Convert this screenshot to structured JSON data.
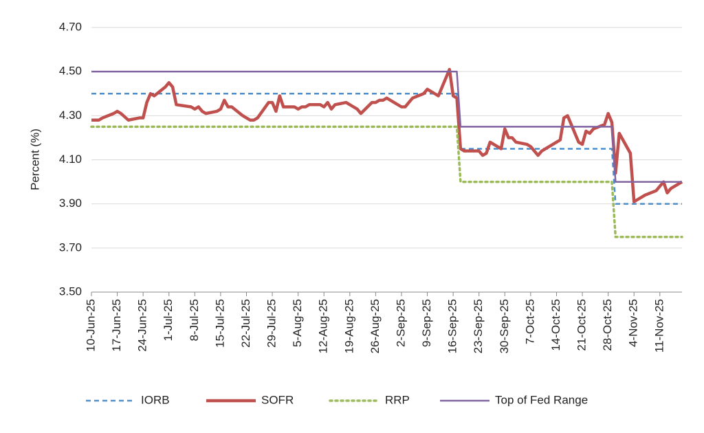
{
  "chart_data": {
    "type": "line",
    "y_label": "Percent (%)",
    "x": [
      "2025-06-10",
      "2025-06-11",
      "2025-06-12",
      "2025-06-13",
      "2025-06-16",
      "2025-06-17",
      "2025-06-18",
      "2025-06-20",
      "2025-06-23",
      "2025-06-24",
      "2025-06-25",
      "2025-06-26",
      "2025-06-27",
      "2025-06-30",
      "2025-07-01",
      "2025-07-02",
      "2025-07-03",
      "2025-07-07",
      "2025-07-08",
      "2025-07-09",
      "2025-07-10",
      "2025-07-11",
      "2025-07-14",
      "2025-07-15",
      "2025-07-16",
      "2025-07-17",
      "2025-07-18",
      "2025-07-21",
      "2025-07-22",
      "2025-07-23",
      "2025-07-24",
      "2025-07-25",
      "2025-07-28",
      "2025-07-29",
      "2025-07-30",
      "2025-07-31",
      "2025-08-01",
      "2025-08-04",
      "2025-08-05",
      "2025-08-06",
      "2025-08-07",
      "2025-08-08",
      "2025-08-11",
      "2025-08-12",
      "2025-08-13",
      "2025-08-14",
      "2025-08-15",
      "2025-08-18",
      "2025-08-19",
      "2025-08-20",
      "2025-08-21",
      "2025-08-22",
      "2025-08-25",
      "2025-08-26",
      "2025-08-27",
      "2025-08-28",
      "2025-08-29",
      "2025-09-02",
      "2025-09-03",
      "2025-09-04",
      "2025-09-05",
      "2025-09-08",
      "2025-09-09",
      "2025-09-10",
      "2025-09-11",
      "2025-09-12",
      "2025-09-15",
      "2025-09-16",
      "2025-09-17",
      "2025-09-18",
      "2025-09-19",
      "2025-09-22",
      "2025-09-23",
      "2025-09-24",
      "2025-09-25",
      "2025-09-26",
      "2025-09-29",
      "2025-09-30",
      "2025-10-01",
      "2025-10-02",
      "2025-10-03",
      "2025-10-06",
      "2025-10-07",
      "2025-10-08",
      "2025-10-09",
      "2025-10-10",
      "2025-10-14",
      "2025-10-15",
      "2025-10-16",
      "2025-10-17",
      "2025-10-20",
      "2025-10-21",
      "2025-10-22",
      "2025-10-23",
      "2025-10-24",
      "2025-10-27",
      "2025-10-28",
      "2025-10-29",
      "2025-10-30",
      "2025-10-31",
      "2025-11-03",
      "2025-11-04",
      "2025-11-05",
      "2025-11-06",
      "2025-11-07",
      "2025-11-10",
      "2025-11-12",
      "2025-11-13",
      "2025-11-14",
      "2025-11-17"
    ],
    "series": [
      {
        "name": "IORB",
        "color": "#4a8fd0",
        "style": "dashed",
        "width": 2.5,
        "values": [
          4.4,
          4.4,
          4.4,
          4.4,
          4.4,
          4.4,
          4.4,
          4.4,
          4.4,
          4.4,
          4.4,
          4.4,
          4.4,
          4.4,
          4.4,
          4.4,
          4.4,
          4.4,
          4.4,
          4.4,
          4.4,
          4.4,
          4.4,
          4.4,
          4.4,
          4.4,
          4.4,
          4.4,
          4.4,
          4.4,
          4.4,
          4.4,
          4.4,
          4.4,
          4.4,
          4.4,
          4.4,
          4.4,
          4.4,
          4.4,
          4.4,
          4.4,
          4.4,
          4.4,
          4.4,
          4.4,
          4.4,
          4.4,
          4.4,
          4.4,
          4.4,
          4.4,
          4.4,
          4.4,
          4.4,
          4.4,
          4.4,
          4.4,
          4.4,
          4.4,
          4.4,
          4.4,
          4.4,
          4.4,
          4.4,
          4.4,
          4.4,
          4.4,
          4.4,
          4.15,
          4.15,
          4.15,
          4.15,
          4.15,
          4.15,
          4.15,
          4.15,
          4.15,
          4.15,
          4.15,
          4.15,
          4.15,
          4.15,
          4.15,
          4.15,
          4.15,
          4.15,
          4.15,
          4.15,
          4.15,
          4.15,
          4.15,
          4.15,
          4.15,
          4.15,
          4.15,
          4.15,
          4.15,
          3.9,
          3.9,
          3.9,
          3.9,
          3.9,
          3.9,
          3.9,
          3.9,
          3.9,
          3.9,
          3.9,
          3.9
        ]
      },
      {
        "name": "SOFR",
        "color": "#c0504d",
        "style": "solid",
        "width": 4.5,
        "values": [
          4.28,
          4.28,
          4.28,
          4.29,
          4.31,
          4.32,
          4.31,
          4.28,
          4.29,
          4.29,
          4.36,
          4.4,
          4.39,
          4.43,
          4.45,
          4.43,
          4.35,
          4.34,
          4.33,
          4.34,
          4.32,
          4.31,
          4.32,
          4.33,
          4.37,
          4.34,
          4.34,
          4.3,
          4.29,
          4.28,
          4.28,
          4.29,
          4.36,
          4.36,
          4.32,
          4.39,
          4.34,
          4.34,
          4.33,
          4.34,
          4.34,
          4.35,
          4.35,
          4.34,
          4.36,
          4.33,
          4.35,
          4.36,
          4.35,
          4.34,
          4.33,
          4.31,
          4.36,
          4.36,
          4.37,
          4.37,
          4.38,
          4.34,
          4.34,
          4.36,
          4.38,
          4.4,
          4.42,
          4.41,
          4.4,
          4.39,
          4.51,
          4.39,
          4.38,
          4.15,
          4.14,
          4.14,
          4.14,
          4.12,
          4.13,
          4.18,
          4.15,
          4.24,
          4.2,
          4.2,
          4.18,
          4.17,
          4.16,
          4.14,
          4.12,
          4.14,
          4.18,
          4.19,
          4.29,
          4.3,
          4.18,
          4.17,
          4.23,
          4.22,
          4.24,
          4.26,
          4.31,
          4.27,
          4.04,
          4.22,
          4.13,
          3.91,
          3.92,
          3.93,
          3.94,
          3.96,
          4.0,
          3.95,
          3.97,
          4.0
        ]
      },
      {
        "name": "RRP",
        "color": "#9bbb59",
        "style": "dotted",
        "width": 3.5,
        "values": [
          4.25,
          4.25,
          4.25,
          4.25,
          4.25,
          4.25,
          4.25,
          4.25,
          4.25,
          4.25,
          4.25,
          4.25,
          4.25,
          4.25,
          4.25,
          4.25,
          4.25,
          4.25,
          4.25,
          4.25,
          4.25,
          4.25,
          4.25,
          4.25,
          4.25,
          4.25,
          4.25,
          4.25,
          4.25,
          4.25,
          4.25,
          4.25,
          4.25,
          4.25,
          4.25,
          4.25,
          4.25,
          4.25,
          4.25,
          4.25,
          4.25,
          4.25,
          4.25,
          4.25,
          4.25,
          4.25,
          4.25,
          4.25,
          4.25,
          4.25,
          4.25,
          4.25,
          4.25,
          4.25,
          4.25,
          4.25,
          4.25,
          4.25,
          4.25,
          4.25,
          4.25,
          4.25,
          4.25,
          4.25,
          4.25,
          4.25,
          4.25,
          4.25,
          4.25,
          4.0,
          4.0,
          4.0,
          4.0,
          4.0,
          4.0,
          4.0,
          4.0,
          4.0,
          4.0,
          4.0,
          4.0,
          4.0,
          4.0,
          4.0,
          4.0,
          4.0,
          4.0,
          4.0,
          4.0,
          4.0,
          4.0,
          4.0,
          4.0,
          4.0,
          4.0,
          4.0,
          4.0,
          4.0,
          3.75,
          3.75,
          3.75,
          3.75,
          3.75,
          3.75,
          3.75,
          3.75,
          3.75,
          3.75,
          3.75,
          3.75
        ]
      },
      {
        "name": "Top of Fed Range",
        "color": "#8064a2",
        "style": "solid",
        "width": 2.5,
        "values": [
          4.5,
          4.5,
          4.5,
          4.5,
          4.5,
          4.5,
          4.5,
          4.5,
          4.5,
          4.5,
          4.5,
          4.5,
          4.5,
          4.5,
          4.5,
          4.5,
          4.5,
          4.5,
          4.5,
          4.5,
          4.5,
          4.5,
          4.5,
          4.5,
          4.5,
          4.5,
          4.5,
          4.5,
          4.5,
          4.5,
          4.5,
          4.5,
          4.5,
          4.5,
          4.5,
          4.5,
          4.5,
          4.5,
          4.5,
          4.5,
          4.5,
          4.5,
          4.5,
          4.5,
          4.5,
          4.5,
          4.5,
          4.5,
          4.5,
          4.5,
          4.5,
          4.5,
          4.5,
          4.5,
          4.5,
          4.5,
          4.5,
          4.5,
          4.5,
          4.5,
          4.5,
          4.5,
          4.5,
          4.5,
          4.5,
          4.5,
          4.5,
          4.5,
          4.5,
          4.25,
          4.25,
          4.25,
          4.25,
          4.25,
          4.25,
          4.25,
          4.25,
          4.25,
          4.25,
          4.25,
          4.25,
          4.25,
          4.25,
          4.25,
          4.25,
          4.25,
          4.25,
          4.25,
          4.25,
          4.25,
          4.25,
          4.25,
          4.25,
          4.25,
          4.25,
          4.25,
          4.25,
          4.25,
          4.0,
          4.0,
          4.0,
          4.0,
          4.0,
          4.0,
          4.0,
          4.0,
          4.0,
          4.0,
          4.0,
          4.0
        ]
      }
    ],
    "xlim": [
      "2025-06-10",
      "2025-11-17"
    ],
    "xticks": [
      {
        "value": "2025-06-10",
        "label": "10-Jun-25"
      },
      {
        "value": "2025-06-17",
        "label": "17-Jun-25"
      },
      {
        "value": "2025-06-24",
        "label": "24-Jun-25"
      },
      {
        "value": "2025-07-01",
        "label": "1-Jul-25"
      },
      {
        "value": "2025-07-08",
        "label": "8-Jul-25"
      },
      {
        "value": "2025-07-15",
        "label": "15-Jul-25"
      },
      {
        "value": "2025-07-22",
        "label": "22-Jul-25"
      },
      {
        "value": "2025-07-29",
        "label": "29-Jul-25"
      },
      {
        "value": "2025-08-05",
        "label": "5-Aug-25"
      },
      {
        "value": "2025-08-12",
        "label": "12-Aug-25"
      },
      {
        "value": "2025-08-19",
        "label": "19-Aug-25"
      },
      {
        "value": "2025-08-26",
        "label": "26-Aug-25"
      },
      {
        "value": "2025-09-02",
        "label": "2-Sep-25"
      },
      {
        "value": "2025-09-09",
        "label": "9-Sep-25"
      },
      {
        "value": "2025-09-16",
        "label": "16-Sep-25"
      },
      {
        "value": "2025-09-23",
        "label": "23-Sep-25"
      },
      {
        "value": "2025-09-30",
        "label": "30-Sep-25"
      },
      {
        "value": "2025-10-07",
        "label": "7-Oct-25"
      },
      {
        "value": "2025-10-14",
        "label": "14-Oct-25"
      },
      {
        "value": "2025-10-21",
        "label": "21-Oct-25"
      },
      {
        "value": "2025-10-28",
        "label": "28-Oct-25"
      },
      {
        "value": "2025-11-04",
        "label": "4-Nov-25"
      },
      {
        "value": "2025-11-11",
        "label": "11-Nov-25"
      }
    ],
    "ylim": [
      3.5,
      4.7
    ],
    "yticks": [
      {
        "value": 3.5,
        "label": "3.50"
      },
      {
        "value": 3.7,
        "label": "3.70"
      },
      {
        "value": 3.9,
        "label": "3.90"
      },
      {
        "value": 4.1,
        "label": "4.10"
      },
      {
        "value": 4.3,
        "label": "4.30"
      },
      {
        "value": 4.5,
        "label": "4.50"
      },
      {
        "value": 4.7,
        "label": "4.70"
      }
    ],
    "grid": true,
    "legend": "bottom"
  }
}
